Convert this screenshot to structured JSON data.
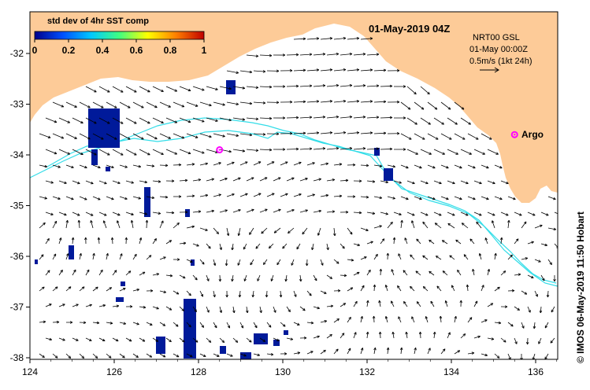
{
  "title": "01-May-2019 04Z",
  "colorbar": {
    "title": "std dev of 4hr SST comp",
    "ticks": [
      "0",
      "0.2",
      "0.4",
      "0.6",
      "0.8",
      "1"
    ],
    "colors": [
      "#00008b",
      "#0050ff",
      "#00c8ff",
      "#40ff80",
      "#ffff00",
      "#ff8000",
      "#c00000"
    ]
  },
  "info": {
    "line1": "NRT00 GSL",
    "line2": "01-May 00:00Z",
    "line3": "0.5m/s (1kt 24h)"
  },
  "argo": {
    "label": "Argo",
    "floats": [
      {
        "lon": 135.5,
        "lat": -33.6
      },
      {
        "lon": 128.5,
        "lat": -33.9
      }
    ]
  },
  "credit": "© IMOS 06-May-2019 11:50 Hobart",
  "axes": {
    "x_ticks": [
      "124",
      "126",
      "128",
      "130",
      "132",
      "134",
      "136"
    ],
    "y_ticks": [
      "-32",
      "-33",
      "-34",
      "-35",
      "-36",
      "-37",
      "-38"
    ]
  },
  "colors": {
    "land": "#fdcb98",
    "contour": "#33dde8",
    "patch": "#001a9a",
    "argo": "#ff00ff"
  }
}
